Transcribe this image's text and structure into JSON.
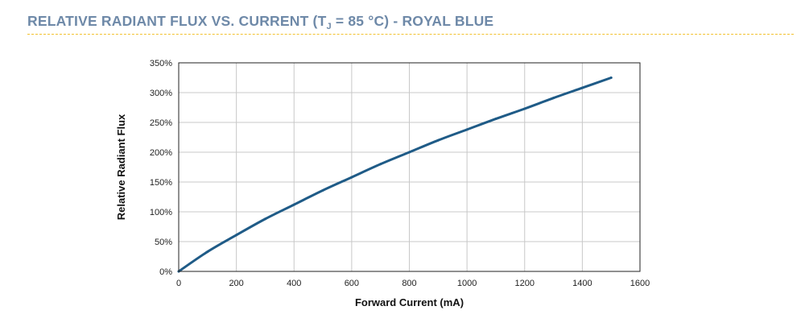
{
  "title": {
    "before": "RELATIVE RADIANT FLUX VS. CURRENT (T",
    "subscript": "J",
    "after": " = 85 °C) - ROYAL BLUE"
  },
  "colors": {
    "title": "#6e89a8",
    "rule": "#f2c230",
    "line": "#1f5b87",
    "grid": "#c8c8c8"
  },
  "chart_data": {
    "type": "line",
    "xlabel": "Forward Current (mA)",
    "ylabel": "Relative Radiant Flux",
    "xlim": [
      0,
      1600
    ],
    "ylim": [
      0,
      350
    ],
    "xticks": [
      0,
      200,
      400,
      600,
      800,
      1000,
      1200,
      1400,
      1600
    ],
    "yticks": [
      0,
      50,
      100,
      150,
      200,
      250,
      300,
      350
    ],
    "ytick_labels": [
      "0%",
      "50%",
      "100%",
      "150%",
      "200%",
      "250%",
      "300%",
      "350%"
    ],
    "grid": true,
    "series": [
      {
        "x": [
          0,
          100,
          200,
          300,
          400,
          500,
          600,
          700,
          800,
          900,
          1000,
          1100,
          1200,
          1300,
          1400,
          1500
        ],
        "values": [
          0,
          33,
          61,
          88,
          112,
          136,
          158,
          180,
          200,
          220,
          238,
          256,
          273,
          291,
          308,
          325
        ]
      }
    ]
  }
}
